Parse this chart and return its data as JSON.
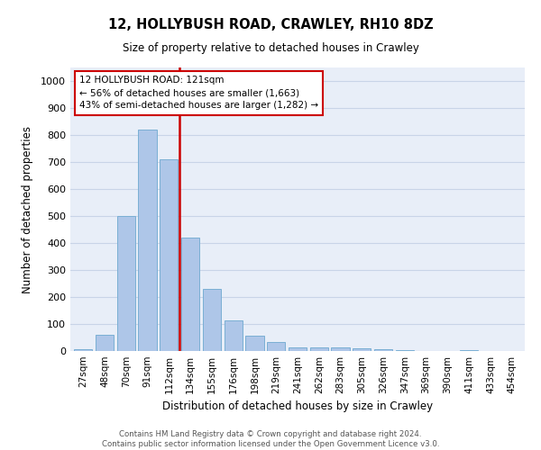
{
  "title": "12, HOLLYBUSH ROAD, CRAWLEY, RH10 8DZ",
  "subtitle": "Size of property relative to detached houses in Crawley",
  "xlabel": "Distribution of detached houses by size in Crawley",
  "ylabel": "Number of detached properties",
  "bar_labels": [
    "27sqm",
    "48sqm",
    "70sqm",
    "91sqm",
    "112sqm",
    "134sqm",
    "155sqm",
    "176sqm",
    "198sqm",
    "219sqm",
    "241sqm",
    "262sqm",
    "283sqm",
    "305sqm",
    "326sqm",
    "347sqm",
    "369sqm",
    "390sqm",
    "411sqm",
    "433sqm",
    "454sqm"
  ],
  "bar_values": [
    8,
    60,
    500,
    820,
    710,
    420,
    230,
    115,
    57,
    32,
    15,
    12,
    12,
    10,
    8,
    5,
    1,
    0,
    5,
    0,
    0
  ],
  "bar_color": "#aec6e8",
  "bar_edge_color": "#7aafd4",
  "vline_color": "#cc0000",
  "vline_index": 4.48,
  "annotation_title": "12 HOLLYBUSH ROAD: 121sqm",
  "annotation_line1": "← 56% of detached houses are smaller (1,663)",
  "annotation_line2": "43% of semi-detached houses are larger (1,282) →",
  "annotation_box_color": "#cc0000",
  "ylim": [
    0,
    1050
  ],
  "yticks": [
    0,
    100,
    200,
    300,
    400,
    500,
    600,
    700,
    800,
    900,
    1000
  ],
  "grid_color": "#c8d4e8",
  "bg_color": "#e8eef8",
  "footer_line1": "Contains HM Land Registry data © Crown copyright and database right 2024.",
  "footer_line2": "Contains public sector information licensed under the Open Government Licence v3.0."
}
